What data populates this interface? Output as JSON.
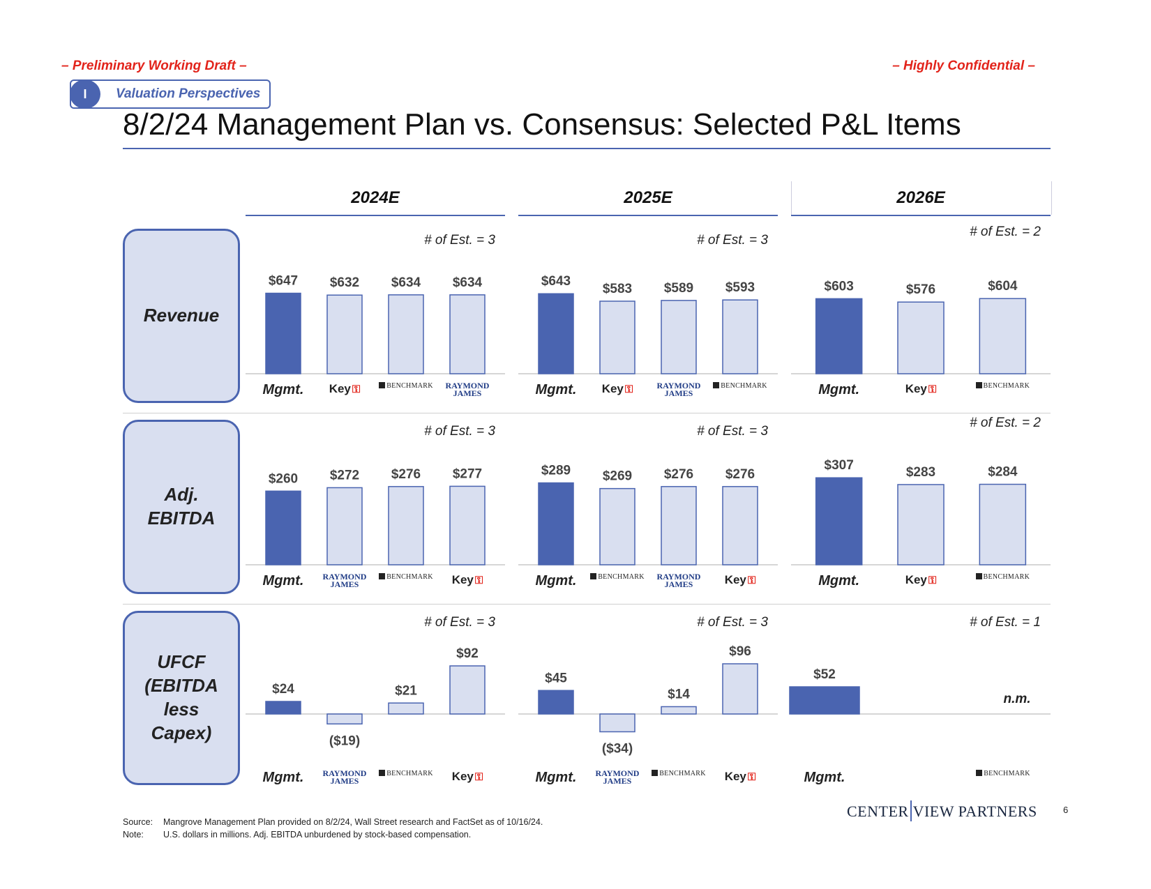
{
  "header": {
    "draft_label": "– Preliminary Working Draft –",
    "confidential_label": "– Highly Confidential –",
    "section_number": "I",
    "section_label": "Valuation Perspectives",
    "title": "8/2/24 Management Plan vs. Consensus: Selected P&L Items"
  },
  "years": [
    "2024E",
    "2025E",
    "2026E"
  ],
  "rows": [
    {
      "label_lines": [
        "Revenue"
      ]
    },
    {
      "label_lines": [
        "Adj.",
        "EBITDA"
      ]
    },
    {
      "label_lines": [
        "UFCF",
        "(EBITDA",
        "less",
        "Capex)"
      ]
    }
  ],
  "colors": {
    "mgmt_bar": "#4a64b0",
    "consensus_bar": "#d9dff0",
    "bar_border": "#4a64b0",
    "accent_red": "#e2231a"
  },
  "chart_data": [
    {
      "type": "bar",
      "row": "Revenue",
      "year": "2024E",
      "estimates_label": "# of Est. = 3",
      "categories": [
        "Mgmt.",
        "Key",
        "BENCHMARK",
        "RAYMOND JAMES"
      ],
      "values": [
        647,
        632,
        634,
        634
      ],
      "labels": [
        "$647",
        "$632",
        "$634",
        "$634"
      ]
    },
    {
      "type": "bar",
      "row": "Revenue",
      "year": "2025E",
      "estimates_label": "# of Est. = 3",
      "categories": [
        "Mgmt.",
        "Key",
        "RAYMOND JAMES",
        "BENCHMARK"
      ],
      "values": [
        643,
        583,
        589,
        593
      ],
      "labels": [
        "$643",
        "$583",
        "$589",
        "$593"
      ]
    },
    {
      "type": "bar",
      "row": "Revenue",
      "year": "2026E",
      "estimates_label": "# of Est. = 2",
      "categories": [
        "Mgmt.",
        "Key",
        "BENCHMARK"
      ],
      "values": [
        603,
        576,
        604
      ],
      "labels": [
        "$603",
        "$576",
        "$604"
      ]
    },
    {
      "type": "bar",
      "row": "Adj. EBITDA",
      "year": "2024E",
      "estimates_label": "# of Est. = 3",
      "categories": [
        "Mgmt.",
        "RAYMOND JAMES",
        "BENCHMARK",
        "Key"
      ],
      "values": [
        260,
        272,
        276,
        277
      ],
      "labels": [
        "$260",
        "$272",
        "$276",
        "$277"
      ]
    },
    {
      "type": "bar",
      "row": "Adj. EBITDA",
      "year": "2025E",
      "estimates_label": "# of Est. = 3",
      "categories": [
        "Mgmt.",
        "BENCHMARK",
        "RAYMOND JAMES",
        "Key"
      ],
      "values": [
        289,
        269,
        276,
        276
      ],
      "labels": [
        "$289",
        "$269",
        "$276",
        "$276"
      ]
    },
    {
      "type": "bar",
      "row": "Adj. EBITDA",
      "year": "2026E",
      "estimates_label": "# of Est. = 2",
      "categories": [
        "Mgmt.",
        "Key",
        "BENCHMARK"
      ],
      "values": [
        307,
        283,
        284
      ],
      "labels": [
        "$307",
        "$283",
        "$284"
      ]
    },
    {
      "type": "bar",
      "row": "UFCF (EBITDA less Capex)",
      "year": "2024E",
      "estimates_label": "# of Est. = 3",
      "categories": [
        "Mgmt.",
        "RAYMOND JAMES",
        "BENCHMARK",
        "Key"
      ],
      "values": [
        24,
        -19,
        21,
        92
      ],
      "labels": [
        "$24",
        "($19)",
        "$21",
        "$92"
      ]
    },
    {
      "type": "bar",
      "row": "UFCF (EBITDA less Capex)",
      "year": "2025E",
      "estimates_label": "# of Est. = 3",
      "categories": [
        "Mgmt.",
        "RAYMOND JAMES",
        "BENCHMARK",
        "Key"
      ],
      "values": [
        45,
        -34,
        14,
        96
      ],
      "labels": [
        "$45",
        "($34)",
        "$14",
        "$96"
      ]
    },
    {
      "type": "bar",
      "row": "UFCF (EBITDA less Capex)",
      "year": "2026E",
      "estimates_label": "# of Est. = 1",
      "categories": [
        "Mgmt.",
        "BENCHMARK"
      ],
      "values": [
        52,
        null
      ],
      "labels": [
        "$52",
        "n.m."
      ]
    }
  ],
  "footer": {
    "source_label": "Source:",
    "source_text": "Mangrove Management Plan provided on 8/2/24, Wall Street research and FactSet as of 10/16/24.",
    "note_label": "Note:",
    "note_text": "U.S. dollars in millions. Adj. EBITDA unburdened by stock-based compensation.",
    "logo_left": "CENTER",
    "logo_right": "VIEW PARTNERS",
    "page_number": "6"
  }
}
